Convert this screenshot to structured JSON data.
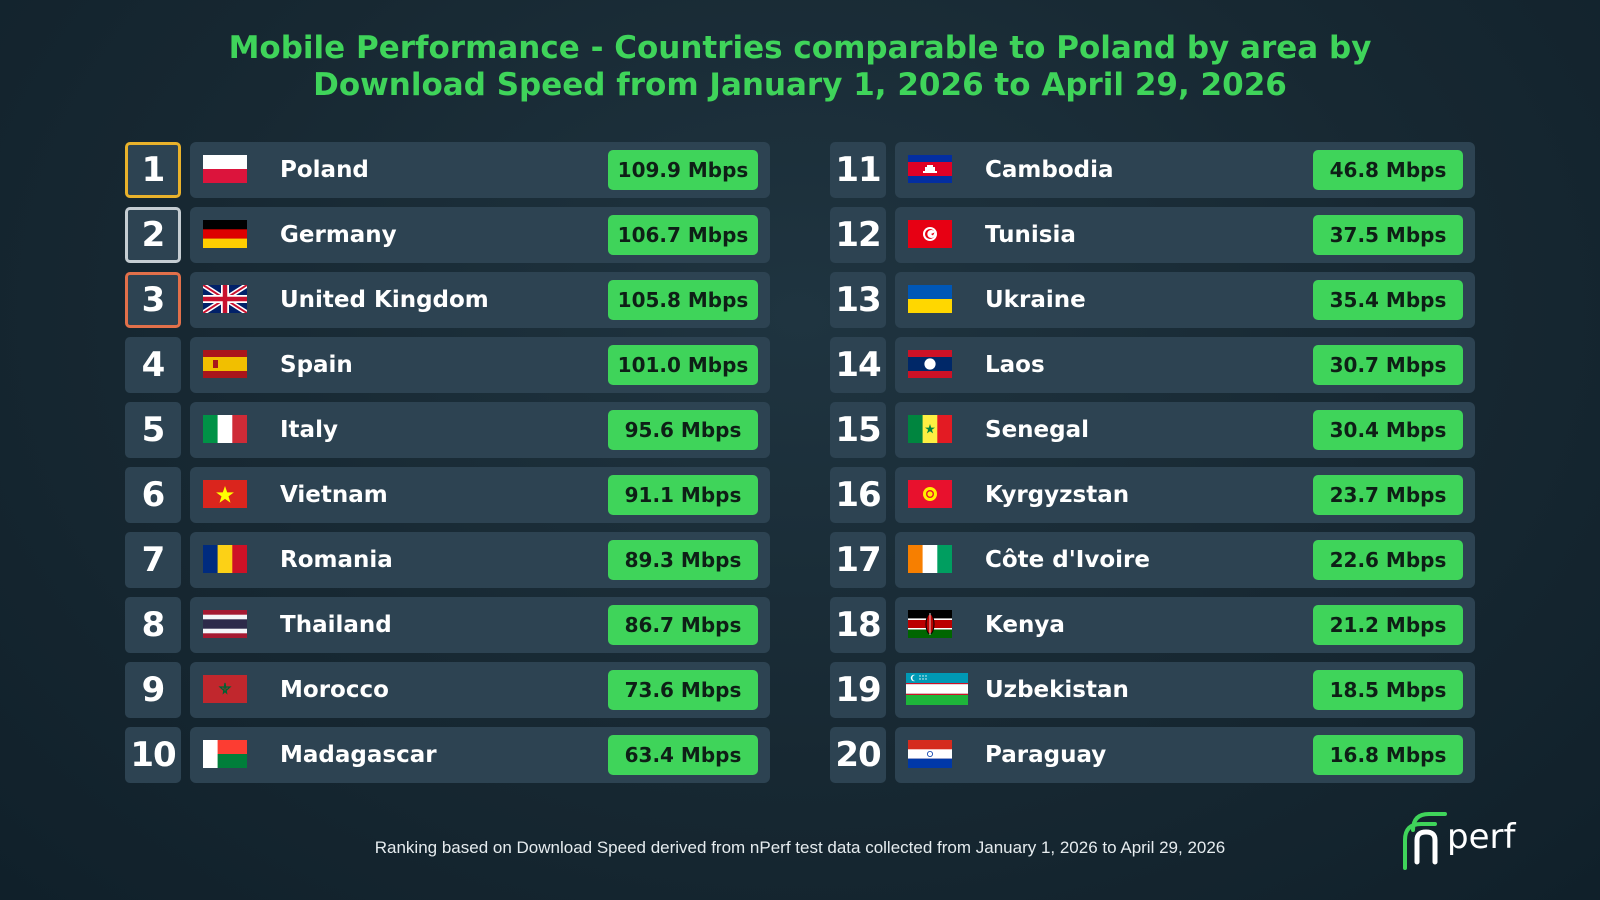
{
  "title_line1": "Mobile Performance - Countries comparable to Poland by area by",
  "title_line2": "Download Speed from January 1, 2026 to April 29, 2026",
  "footnote": "Ranking based on Download Speed derived from nPerf test data collected from January 1, 2026 to April 29, 2026",
  "logo": {
    "text": "perf",
    "icon": "nperf-logo-icon"
  },
  "colors": {
    "accent": "#3fd45a",
    "row": "#2d4352",
    "gold": "#e9b22b",
    "silver": "#c5cdd2",
    "bronze": "#e2704a"
  },
  "chart_data": {
    "type": "table",
    "title": "Mobile Performance - Countries comparable to Poland by area by Download Speed from January 1, 2026 to April 29, 2026",
    "unit": "Mbps",
    "rows": [
      {
        "rank": 1,
        "country": "Poland",
        "flag": "poland-flag-icon",
        "value": "109.9 Mbps"
      },
      {
        "rank": 2,
        "country": "Germany",
        "flag": "germany-flag-icon",
        "value": "106.7 Mbps"
      },
      {
        "rank": 3,
        "country": "United Kingdom",
        "flag": "united-kingdom-flag-icon",
        "value": "105.8 Mbps"
      },
      {
        "rank": 4,
        "country": "Spain",
        "flag": "spain-flag-icon",
        "value": "101.0 Mbps"
      },
      {
        "rank": 5,
        "country": "Italy",
        "flag": "italy-flag-icon",
        "value": "95.6 Mbps"
      },
      {
        "rank": 6,
        "country": "Vietnam",
        "flag": "vietnam-flag-icon",
        "value": "91.1 Mbps"
      },
      {
        "rank": 7,
        "country": "Romania",
        "flag": "romania-flag-icon",
        "value": "89.3 Mbps"
      },
      {
        "rank": 8,
        "country": "Thailand",
        "flag": "thailand-flag-icon",
        "value": "86.7 Mbps"
      },
      {
        "rank": 9,
        "country": "Morocco",
        "flag": "morocco-flag-icon",
        "value": "73.6 Mbps"
      },
      {
        "rank": 10,
        "country": "Madagascar",
        "flag": "madagascar-flag-icon",
        "value": "63.4 Mbps"
      },
      {
        "rank": 11,
        "country": "Cambodia",
        "flag": "cambodia-flag-icon",
        "value": "46.8 Mbps"
      },
      {
        "rank": 12,
        "country": "Tunisia",
        "flag": "tunisia-flag-icon",
        "value": "37.5 Mbps"
      },
      {
        "rank": 13,
        "country": "Ukraine",
        "flag": "ukraine-flag-icon",
        "value": "35.4 Mbps"
      },
      {
        "rank": 14,
        "country": "Laos",
        "flag": "laos-flag-icon",
        "value": "30.7 Mbps"
      },
      {
        "rank": 15,
        "country": "Senegal",
        "flag": "senegal-flag-icon",
        "value": "30.4 Mbps"
      },
      {
        "rank": 16,
        "country": "Kyrgyzstan",
        "flag": "kyrgyzstan-flag-icon",
        "value": "23.7 Mbps"
      },
      {
        "rank": 17,
        "country": "Côte d'Ivoire",
        "flag": "cote-divoire-flag-icon",
        "value": "22.6 Mbps"
      },
      {
        "rank": 18,
        "country": "Kenya",
        "flag": "kenya-flag-icon",
        "value": "21.2 Mbps"
      },
      {
        "rank": 19,
        "country": "Uzbekistan",
        "flag": "uzbekistan-flag-icon",
        "value": "18.5 Mbps"
      },
      {
        "rank": 20,
        "country": "Paraguay",
        "flag": "paraguay-flag-icon",
        "value": "16.8 Mbps"
      }
    ]
  }
}
